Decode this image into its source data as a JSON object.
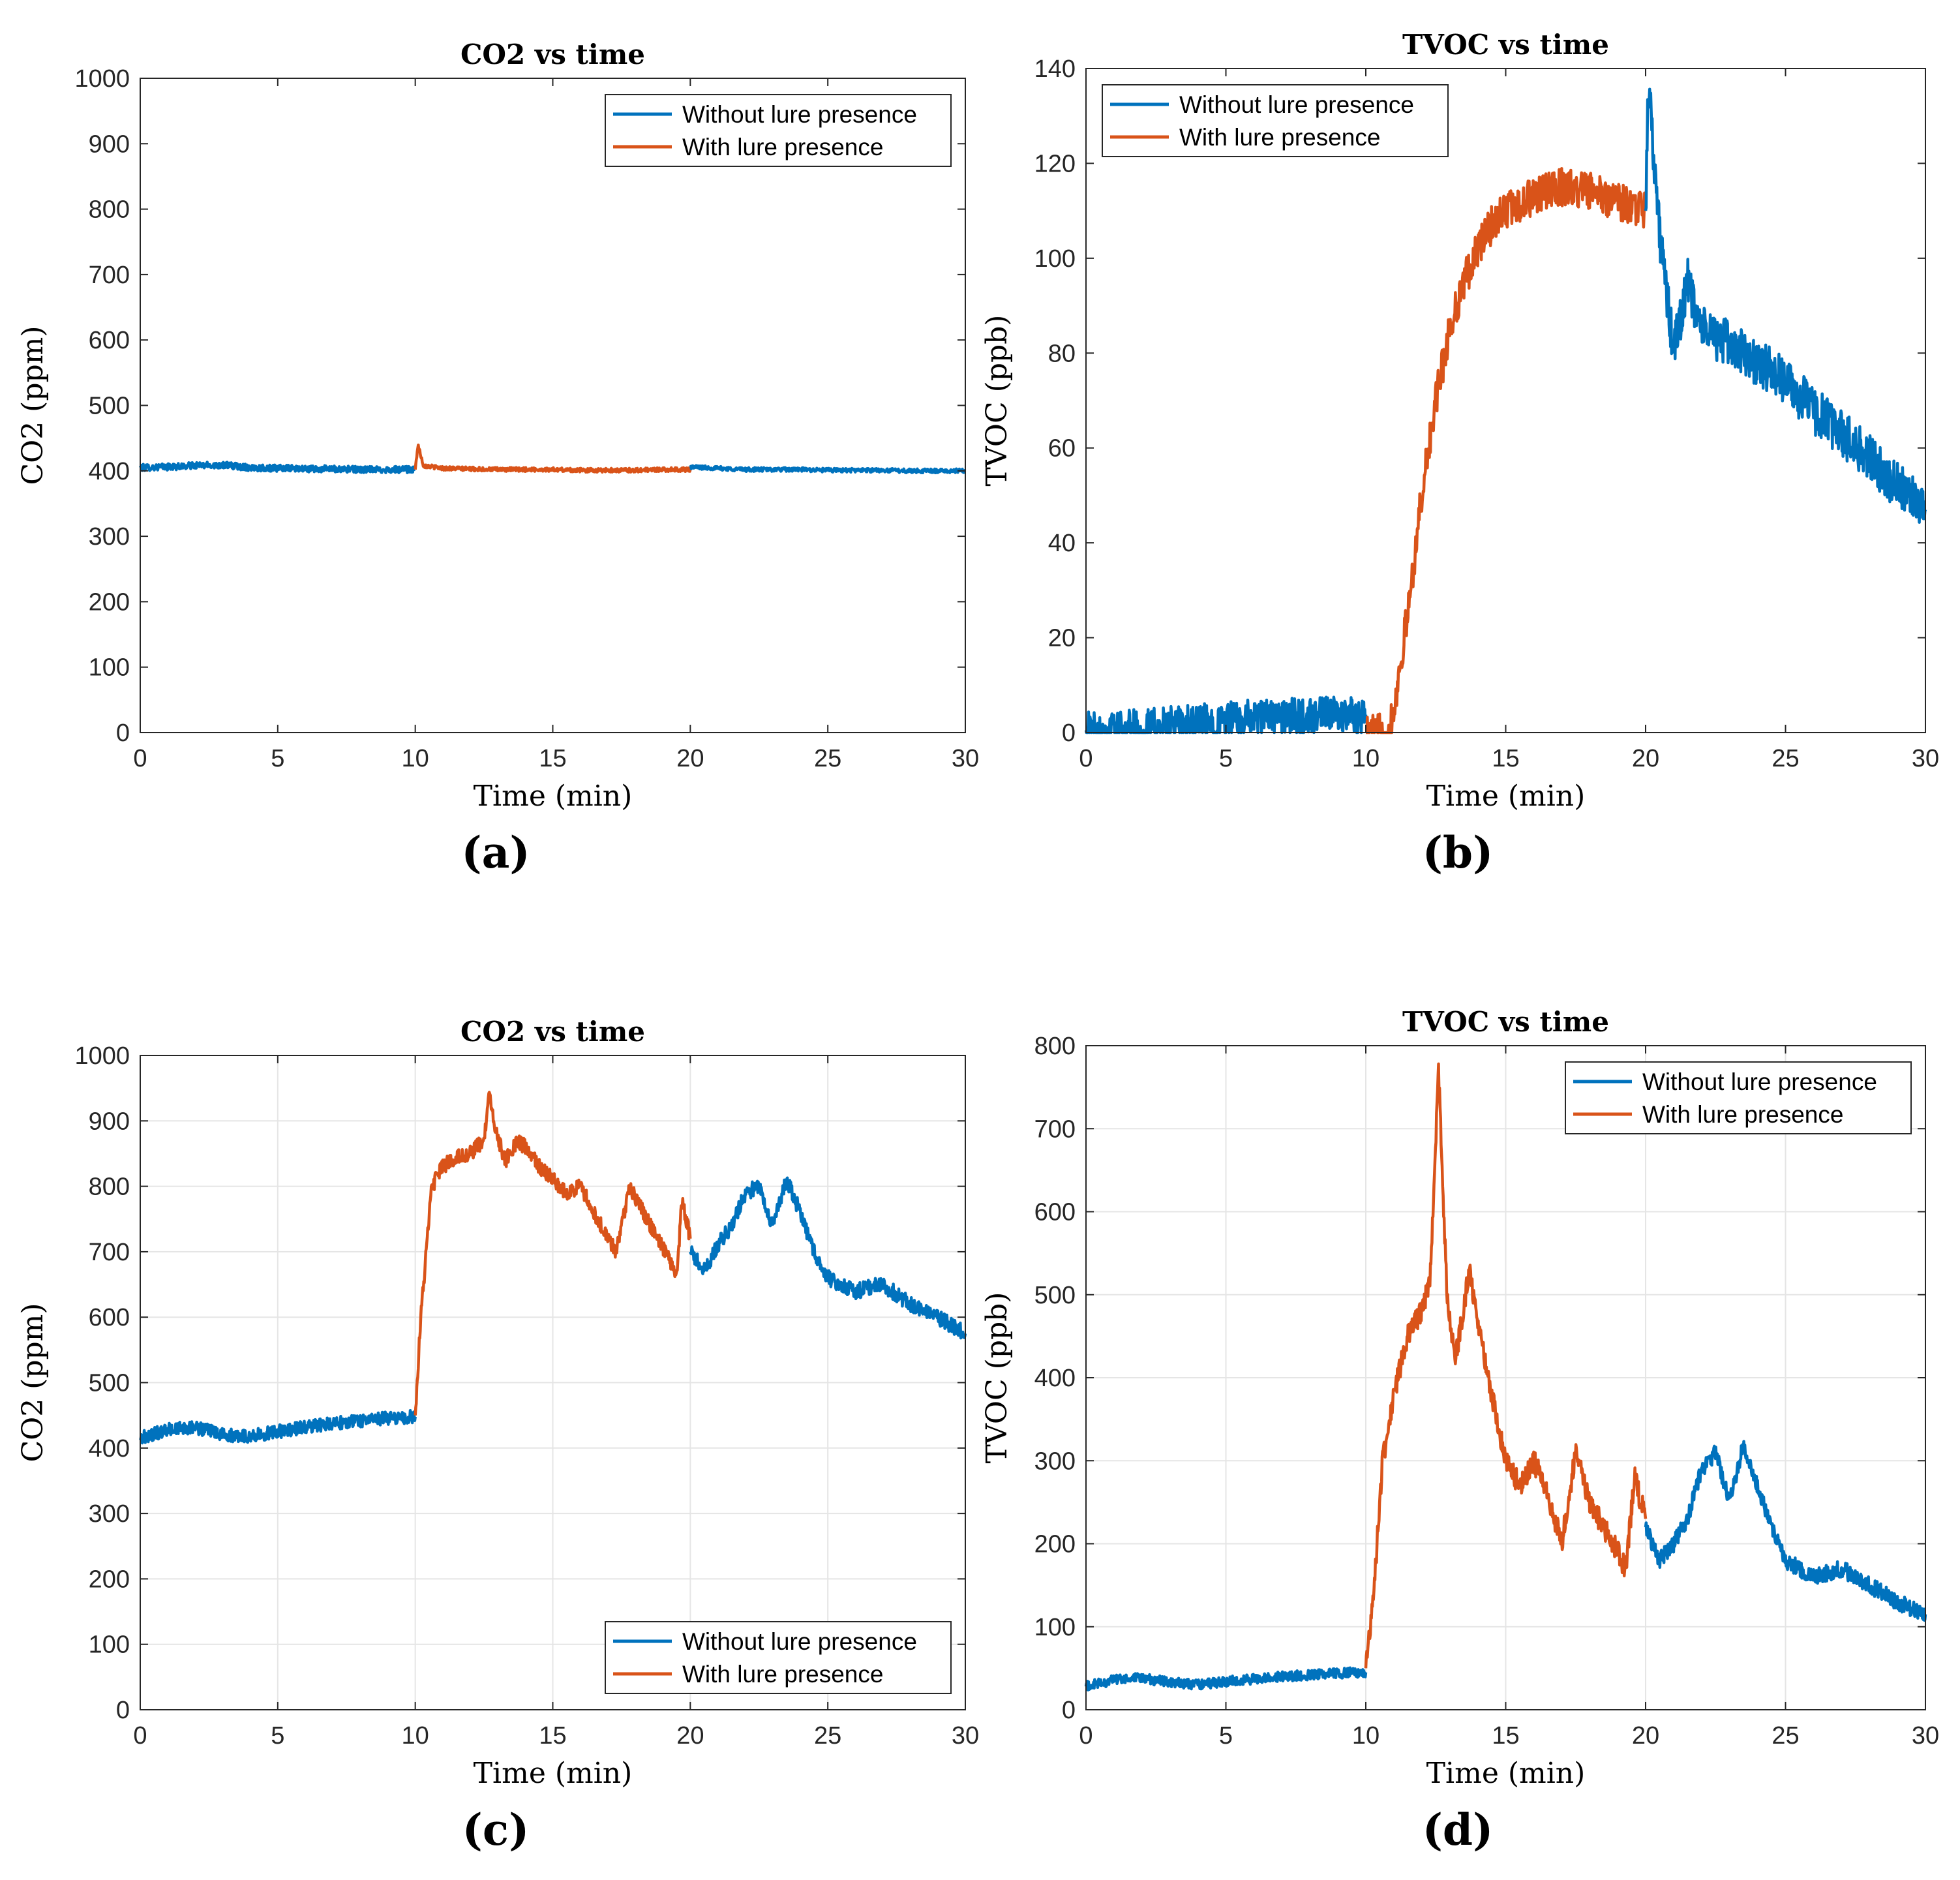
{
  "figure": {
    "panels": [
      "(a)",
      "(b)",
      "(c)",
      "(d)"
    ]
  },
  "colors": {
    "without": "#0072BD",
    "with": "#D95319",
    "grid": "#e5e5e5",
    "axis": "#262626"
  },
  "chart_data": [
    {
      "panel": "(a)",
      "type": "line",
      "title": "CO2 vs time",
      "xlabel": "Time (min)",
      "ylabel": "CO2 (ppm)",
      "xlim": [
        0,
        30
      ],
      "ylim": [
        0,
        1000
      ],
      "xticks": [
        0,
        5,
        10,
        15,
        20,
        25,
        30
      ],
      "yticks": [
        0,
        100,
        200,
        300,
        400,
        500,
        600,
        700,
        800,
        900,
        1000
      ],
      "grid": false,
      "legend": {
        "position": "top-right",
        "entries": [
          "Without lure presence",
          "With lure presence"
        ]
      },
      "series": [
        {
          "name": "Without lure presence",
          "color_key": "without",
          "x": [
            0,
            1,
            2,
            3,
            4,
            5,
            6,
            7,
            8,
            9,
            9.9,
            10
          ],
          "y": [
            405,
            406,
            408,
            409,
            405,
            404,
            403,
            403,
            402,
            402,
            402,
            402
          ],
          "noise": 5
        },
        {
          "name": "With lure presence",
          "color_key": "with",
          "x": [
            10,
            10.1,
            10.3,
            11,
            12,
            13,
            14,
            15,
            16,
            17,
            18,
            19,
            20
          ],
          "y": [
            402,
            440,
            408,
            404,
            403,
            402,
            402,
            402,
            401,
            401,
            401,
            402,
            402
          ],
          "noise": 3
        },
        {
          "name": "Without lure presence",
          "color_key": "without",
          "x": [
            20,
            21,
            22,
            23,
            24,
            25,
            26,
            27,
            28,
            29,
            30
          ],
          "y": [
            406,
            404,
            402,
            402,
            402,
            401,
            401,
            401,
            400,
            400,
            400
          ],
          "noise": 3
        }
      ]
    },
    {
      "panel": "(b)",
      "type": "line",
      "title": "TVOC vs time",
      "xlabel": "Time (min)",
      "ylabel": "TVOC (ppb)",
      "xlim": [
        0,
        30
      ],
      "ylim": [
        0,
        140
      ],
      "xticks": [
        0,
        5,
        10,
        15,
        20,
        25,
        30
      ],
      "yticks": [
        0,
        20,
        40,
        60,
        80,
        100,
        120,
        140
      ],
      "grid": false,
      "legend": {
        "position": "top-left",
        "entries": [
          "Without lure presence",
          "With lure presence"
        ]
      },
      "series": [
        {
          "name": "Without lure presence",
          "color_key": "without",
          "x": [
            0,
            1,
            2,
            3,
            4,
            5,
            6,
            7,
            8,
            9,
            10
          ],
          "y": [
            0.5,
            0.8,
            1,
            1.5,
            2,
            2.5,
            3,
            3.2,
            3.4,
            3.6,
            3.8
          ],
          "noise": 4,
          "clip_min": 0
        },
        {
          "name": "With lure presence",
          "color_key": "with",
          "x": [
            10,
            10.8,
            11,
            11.5,
            12,
            12.5,
            13,
            13.5,
            14,
            14.5,
            15,
            16,
            17,
            18,
            19,
            20
          ],
          "y": [
            0,
            0,
            5,
            25,
            50,
            70,
            85,
            95,
            102,
            107,
            110,
            113,
            115,
            114,
            112,
            110
          ],
          "noise": 4,
          "clip_min": 0
        },
        {
          "name": "Without lure presence",
          "color_key": "without",
          "x": [
            20,
            20.1,
            20.5,
            21,
            21.5,
            22,
            23,
            24,
            25,
            26,
            27,
            28,
            29,
            30
          ],
          "y": [
            110,
            138,
            105,
            80,
            95,
            85,
            82,
            78,
            74,
            68,
            63,
            58,
            52,
            47
          ],
          "noise": 5
        }
      ]
    },
    {
      "panel": "(c)",
      "type": "line",
      "title": "CO2 vs time",
      "xlabel": "Time (min)",
      "ylabel": "CO2 (ppm)",
      "xlim": [
        0,
        30
      ],
      "ylim": [
        0,
        1000
      ],
      "xticks": [
        0,
        5,
        10,
        15,
        20,
        25,
        30
      ],
      "yticks": [
        0,
        100,
        200,
        300,
        400,
        500,
        600,
        700,
        800,
        900,
        1000
      ],
      "grid": true,
      "legend": {
        "position": "bottom-right",
        "entries": [
          "Without lure presence",
          "With lure presence"
        ]
      },
      "series": [
        {
          "name": "Without lure presence",
          "color_key": "without",
          "x": [
            0,
            1,
            2,
            3,
            4,
            5,
            6,
            7,
            8,
            9,
            10
          ],
          "y": [
            415,
            428,
            432,
            420,
            418,
            425,
            432,
            438,
            442,
            446,
            448
          ],
          "noise": 10
        },
        {
          "name": "With lure presence",
          "color_key": "with",
          "x": [
            10,
            10.2,
            10.6,
            11,
            11.5,
            12,
            12.5,
            12.7,
            13,
            13.3,
            13.7,
            14,
            14.5,
            15,
            15.5,
            16,
            16.5,
            17,
            17.3,
            17.8,
            18.3,
            18.8,
            19.2,
            19.5,
            19.7,
            20
          ],
          "y": [
            450,
            600,
            800,
            830,
            845,
            850,
            870,
            940,
            870,
            840,
            870,
            860,
            830,
            810,
            790,
            800,
            760,
            720,
            700,
            800,
            760,
            720,
            690,
            660,
            780,
            720
          ],
          "noise": 12
        },
        {
          "name": "Without lure presence",
          "color_key": "without",
          "x": [
            20,
            20.5,
            21,
            21.5,
            22,
            22.5,
            23,
            23.5,
            24,
            24.5,
            25,
            26,
            27,
            28,
            29,
            30
          ],
          "y": [
            700,
            670,
            710,
            740,
            790,
            800,
            740,
            810,
            760,
            700,
            660,
            640,
            650,
            620,
            600,
            575
          ],
          "noise": 12
        }
      ]
    },
    {
      "panel": "(d)",
      "type": "line",
      "title": "TVOC vs time",
      "xlabel": "Time (min)",
      "ylabel": "TVOC (ppb)",
      "xlim": [
        0,
        30
      ],
      "ylim": [
        0,
        800
      ],
      "xticks": [
        0,
        5,
        10,
        15,
        20,
        25,
        30
      ],
      "yticks": [
        0,
        100,
        200,
        300,
        400,
        500,
        600,
        700,
        800
      ],
      "grid": true,
      "legend": {
        "position": "top-right",
        "entries": [
          "Without lure presence",
          "With lure presence"
        ]
      },
      "series": [
        {
          "name": "Without lure presence",
          "color_key": "without",
          "x": [
            0,
            1,
            2,
            3,
            4,
            5,
            6,
            7,
            8,
            9,
            10
          ],
          "y": [
            28,
            36,
            38,
            33,
            30,
            34,
            37,
            40,
            42,
            44,
            45
          ],
          "noise": 6
        },
        {
          "name": "With lure presence",
          "color_key": "with",
          "x": [
            10,
            10.3,
            10.6,
            11,
            11.5,
            12,
            12.3,
            12.6,
            12.9,
            13.2,
            13.7,
            14,
            14.5,
            15,
            15.5,
            16,
            16.5,
            17,
            17.5,
            18,
            18.5,
            19,
            19.3,
            19.6,
            20
          ],
          "y": [
            50,
            150,
            300,
            380,
            450,
            480,
            520,
            770,
            500,
            420,
            530,
            470,
            380,
            300,
            270,
            300,
            260,
            200,
            310,
            250,
            220,
            190,
            170,
            280,
            230
          ],
          "noise": 14
        },
        {
          "name": "Without lure presence",
          "color_key": "without",
          "x": [
            20,
            20.5,
            21,
            21.5,
            22,
            22.5,
            23,
            23.5,
            24,
            24.5,
            25,
            26,
            27,
            28,
            29,
            30
          ],
          "y": [
            220,
            180,
            200,
            230,
            290,
            310,
            250,
            320,
            270,
            220,
            180,
            160,
            170,
            150,
            130,
            115
          ],
          "noise": 10
        }
      ]
    }
  ]
}
